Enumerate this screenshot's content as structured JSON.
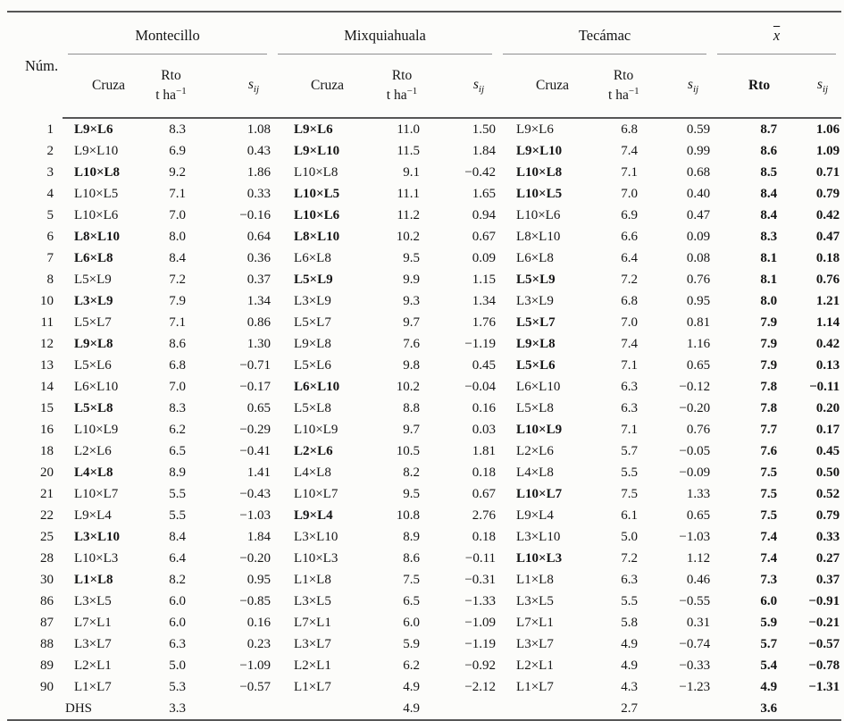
{
  "table": {
    "num_header": "Núm.",
    "groups": [
      "Montecillo",
      "Mixquiahuala",
      "Tecámac"
    ],
    "mean_label": "x",
    "sub": {
      "cruza": "Cruza",
      "rto": "Rto",
      "unit_base": "t ha",
      "unit_exp": "−1",
      "sij_base": "s",
      "sij_sub": "ij",
      "avg_rto": "Rto"
    },
    "rows": [
      {
        "num": "1",
        "mont_cruza": "L9×L6",
        "mont_bold": true,
        "mont_rto": "8.3",
        "mont_sij": "1.08",
        "mix_cruza": "L9×L6",
        "mix_bold": true,
        "mix_rto": "11.0",
        "mix_sij": "1.50",
        "tec_cruza": "L9×L6",
        "tec_bold": false,
        "tec_rto": "6.8",
        "tec_sij": "0.59",
        "avg_rto": "8.7",
        "avg_sij": "1.06"
      },
      {
        "num": "2",
        "mont_cruza": "L9×L10",
        "mont_bold": false,
        "mont_rto": "6.9",
        "mont_sij": "0.43",
        "mix_cruza": "L9×L10",
        "mix_bold": true,
        "mix_rto": "11.5",
        "mix_sij": "1.84",
        "tec_cruza": "L9×L10",
        "tec_bold": true,
        "tec_rto": "7.4",
        "tec_sij": "0.99",
        "avg_rto": "8.6",
        "avg_sij": "1.09"
      },
      {
        "num": "3",
        "mont_cruza": "L10×L8",
        "mont_bold": true,
        "mont_rto": "9.2",
        "mont_sij": "1.86",
        "mix_cruza": "L10×L8",
        "mix_bold": false,
        "mix_rto": "9.1",
        "mix_sij": "−0.42",
        "tec_cruza": "L10×L8",
        "tec_bold": true,
        "tec_rto": "7.1",
        "tec_sij": "0.68",
        "avg_rto": "8.5",
        "avg_sij": "0.71"
      },
      {
        "num": "4",
        "mont_cruza": "L10×L5",
        "mont_bold": false,
        "mont_rto": "7.1",
        "mont_sij": "0.33",
        "mix_cruza": "L10×L5",
        "mix_bold": true,
        "mix_rto": "11.1",
        "mix_sij": "1.65",
        "tec_cruza": "L10×L5",
        "tec_bold": true,
        "tec_rto": "7.0",
        "tec_sij": "0.40",
        "avg_rto": "8.4",
        "avg_sij": "0.79"
      },
      {
        "num": "5",
        "mont_cruza": "L10×L6",
        "mont_bold": false,
        "mont_rto": "7.0",
        "mont_sij": "−0.16",
        "mix_cruza": "L10×L6",
        "mix_bold": true,
        "mix_rto": "11.2",
        "mix_sij": "0.94",
        "tec_cruza": "L10×L6",
        "tec_bold": false,
        "tec_rto": "6.9",
        "tec_sij": "0.47",
        "avg_rto": "8.4",
        "avg_sij": "0.42"
      },
      {
        "num": "6",
        "mont_cruza": "L8×L10",
        "mont_bold": true,
        "mont_rto": "8.0",
        "mont_sij": "0.64",
        "mix_cruza": "L8×L10",
        "mix_bold": true,
        "mix_rto": "10.2",
        "mix_sij": "0.67",
        "tec_cruza": "L8×L10",
        "tec_bold": false,
        "tec_rto": "6.6",
        "tec_sij": "0.09",
        "avg_rto": "8.3",
        "avg_sij": "0.47"
      },
      {
        "num": "7",
        "mont_cruza": "L6×L8",
        "mont_bold": true,
        "mont_rto": "8.4",
        "mont_sij": "0.36",
        "mix_cruza": "L6×L8",
        "mix_bold": false,
        "mix_rto": "9.5",
        "mix_sij": "0.09",
        "tec_cruza": "L6×L8",
        "tec_bold": false,
        "tec_rto": "6.4",
        "tec_sij": "0.08",
        "avg_rto": "8.1",
        "avg_sij": "0.18"
      },
      {
        "num": "8",
        "mont_cruza": "L5×L9",
        "mont_bold": false,
        "mont_rto": "7.2",
        "mont_sij": "0.37",
        "mix_cruza": "L5×L9",
        "mix_bold": true,
        "mix_rto": "9.9",
        "mix_sij": "1.15",
        "tec_cruza": "L5×L9",
        "tec_bold": true,
        "tec_rto": "7.2",
        "tec_sij": "0.76",
        "avg_rto": "8.1",
        "avg_sij": "0.76"
      },
      {
        "num": "10",
        "mont_cruza": "L3×L9",
        "mont_bold": true,
        "mont_rto": "7.9",
        "mont_sij": "1.34",
        "mix_cruza": "L3×L9",
        "mix_bold": false,
        "mix_rto": "9.3",
        "mix_sij": "1.34",
        "tec_cruza": "L3×L9",
        "tec_bold": false,
        "tec_rto": "6.8",
        "tec_sij": "0.95",
        "avg_rto": "8.0",
        "avg_sij": "1.21"
      },
      {
        "num": "11",
        "mont_cruza": "L5×L7",
        "mont_bold": false,
        "mont_rto": "7.1",
        "mont_sij": "0.86",
        "mix_cruza": "L5×L7",
        "mix_bold": false,
        "mix_rto": "9.7",
        "mix_sij": "1.76",
        "tec_cruza": "L5×L7",
        "tec_bold": true,
        "tec_rto": "7.0",
        "tec_sij": "0.81",
        "avg_rto": "7.9",
        "avg_sij": "1.14"
      },
      {
        "num": "12",
        "mont_cruza": "L9×L8",
        "mont_bold": true,
        "mont_rto": "8.6",
        "mont_sij": "1.30",
        "mix_cruza": "L9×L8",
        "mix_bold": false,
        "mix_rto": "7.6",
        "mix_sij": "−1.19",
        "tec_cruza": "L9×L8",
        "tec_bold": true,
        "tec_rto": "7.4",
        "tec_sij": "1.16",
        "avg_rto": "7.9",
        "avg_sij": "0.42"
      },
      {
        "num": "13",
        "mont_cruza": "L5×L6",
        "mont_bold": false,
        "mont_rto": "6.8",
        "mont_sij": "−0.71",
        "mix_cruza": "L5×L6",
        "mix_bold": false,
        "mix_rto": "9.8",
        "mix_sij": "0.45",
        "tec_cruza": "L5×L6",
        "tec_bold": true,
        "tec_rto": "7.1",
        "tec_sij": "0.65",
        "avg_rto": "7.9",
        "avg_sij": "0.13"
      },
      {
        "num": "14",
        "mont_cruza": "L6×L10",
        "mont_bold": false,
        "mont_rto": "7.0",
        "mont_sij": "−0.17",
        "mix_cruza": "L6×L10",
        "mix_bold": true,
        "mix_rto": "10.2",
        "mix_sij": "−0.04",
        "tec_cruza": "L6×L10",
        "tec_bold": false,
        "tec_rto": "6.3",
        "tec_sij": "−0.12",
        "avg_rto": "7.8",
        "avg_sij": "−0.11"
      },
      {
        "num": "15",
        "mont_cruza": "L5×L8",
        "mont_bold": true,
        "mont_rto": "8.3",
        "mont_sij": "0.65",
        "mix_cruza": "L5×L8",
        "mix_bold": false,
        "mix_rto": "8.8",
        "mix_sij": "0.16",
        "tec_cruza": "L5×L8",
        "tec_bold": false,
        "tec_rto": "6.3",
        "tec_sij": "−0.20",
        "avg_rto": "7.8",
        "avg_sij": "0.20"
      },
      {
        "num": "16",
        "mont_cruza": "L10×L9",
        "mont_bold": false,
        "mont_rto": "6.2",
        "mont_sij": "−0.29",
        "mix_cruza": "L10×L9",
        "mix_bold": false,
        "mix_rto": "9.7",
        "mix_sij": "0.03",
        "tec_cruza": "L10×L9",
        "tec_bold": true,
        "tec_rto": "7.1",
        "tec_sij": "0.76",
        "avg_rto": "7.7",
        "avg_sij": "0.17"
      },
      {
        "num": "18",
        "mont_cruza": "L2×L6",
        "mont_bold": false,
        "mont_rto": "6.5",
        "mont_sij": "−0.41",
        "mix_cruza": "L2×L6",
        "mix_bold": true,
        "mix_rto": "10.5",
        "mix_sij": "1.81",
        "tec_cruza": "L2×L6",
        "tec_bold": false,
        "tec_rto": "5.7",
        "tec_sij": "−0.05",
        "avg_rto": "7.6",
        "avg_sij": "0.45"
      },
      {
        "num": "20",
        "mont_cruza": "L4×L8",
        "mont_bold": true,
        "mont_rto": "8.9",
        "mont_sij": "1.41",
        "mix_cruza": "L4×L8",
        "mix_bold": false,
        "mix_rto": "8.2",
        "mix_sij": "0.18",
        "tec_cruza": "L4×L8",
        "tec_bold": false,
        "tec_rto": "5.5",
        "tec_sij": "−0.09",
        "avg_rto": "7.5",
        "avg_sij": "0.50"
      },
      {
        "num": "21",
        "mont_cruza": "L10×L7",
        "mont_bold": false,
        "mont_rto": "5.5",
        "mont_sij": "−0.43",
        "mix_cruza": "L10×L7",
        "mix_bold": false,
        "mix_rto": "9.5",
        "mix_sij": "0.67",
        "tec_cruza": "L10×L7",
        "tec_bold": true,
        "tec_rto": "7.5",
        "tec_sij": "1.33",
        "avg_rto": "7.5",
        "avg_sij": "0.52"
      },
      {
        "num": "22",
        "mont_cruza": "L9×L4",
        "mont_bold": false,
        "mont_rto": "5.5",
        "mont_sij": "−1.03",
        "mix_cruza": "L9×L4",
        "mix_bold": true,
        "mix_rto": "10.8",
        "mix_sij": "2.76",
        "tec_cruza": "L9×L4",
        "tec_bold": false,
        "tec_rto": "6.1",
        "tec_sij": "0.65",
        "avg_rto": "7.5",
        "avg_sij": "0.79"
      },
      {
        "num": "25",
        "mont_cruza": "L3×L10",
        "mont_bold": true,
        "mont_rto": "8.4",
        "mont_sij": "1.84",
        "mix_cruza": "L3×L10",
        "mix_bold": false,
        "mix_rto": "8.9",
        "mix_sij": "0.18",
        "tec_cruza": "L3×L10",
        "tec_bold": false,
        "tec_rto": "5.0",
        "tec_sij": "−1.03",
        "avg_rto": "7.4",
        "avg_sij": "0.33"
      },
      {
        "num": "28",
        "mont_cruza": "L10×L3",
        "mont_bold": false,
        "mont_rto": "6.4",
        "mont_sij": "−0.20",
        "mix_cruza": "L10×L3",
        "mix_bold": false,
        "mix_rto": "8.6",
        "mix_sij": "−0.11",
        "tec_cruza": "L10×L3",
        "tec_bold": true,
        "tec_rto": "7.2",
        "tec_sij": "1.12",
        "avg_rto": "7.4",
        "avg_sij": "0.27"
      },
      {
        "num": "30",
        "mont_cruza": "L1×L8",
        "mont_bold": true,
        "mont_rto": "8.2",
        "mont_sij": "0.95",
        "mix_cruza": "L1×L8",
        "mix_bold": false,
        "mix_rto": "7.5",
        "mix_sij": "−0.31",
        "tec_cruza": "L1×L8",
        "tec_bold": false,
        "tec_rto": "6.3",
        "tec_sij": "0.46",
        "avg_rto": "7.3",
        "avg_sij": "0.37"
      },
      {
        "num": "86",
        "mont_cruza": "L3×L5",
        "mont_bold": false,
        "mont_rto": "6.0",
        "mont_sij": "−0.85",
        "mix_cruza": "L3×L5",
        "mix_bold": false,
        "mix_rto": "6.5",
        "mix_sij": "−1.33",
        "tec_cruza": "L3×L5",
        "tec_bold": false,
        "tec_rto": "5.5",
        "tec_sij": "−0.55",
        "avg_rto": "6.0",
        "avg_sij": "−0.91"
      },
      {
        "num": "87",
        "mont_cruza": "L7×L1",
        "mont_bold": false,
        "mont_rto": "6.0",
        "mont_sij": "0.16",
        "mix_cruza": "L7×L1",
        "mix_bold": false,
        "mix_rto": "6.0",
        "mix_sij": "−1.09",
        "tec_cruza": "L7×L1",
        "tec_bold": false,
        "tec_rto": "5.8",
        "tec_sij": "0.31",
        "avg_rto": "5.9",
        "avg_sij": "−0.21"
      },
      {
        "num": "88",
        "mont_cruza": "L3×L7",
        "mont_bold": false,
        "mont_rto": "6.3",
        "mont_sij": "0.23",
        "mix_cruza": "L3×L7",
        "mix_bold": false,
        "mix_rto": "5.9",
        "mix_sij": "−1.19",
        "tec_cruza": "L3×L7",
        "tec_bold": false,
        "tec_rto": "4.9",
        "tec_sij": "−0.74",
        "avg_rto": "5.7",
        "avg_sij": "−0.57"
      },
      {
        "num": "89",
        "mont_cruza": "L2×L1",
        "mont_bold": false,
        "mont_rto": "5.0",
        "mont_sij": "−1.09",
        "mix_cruza": "L2×L1",
        "mix_bold": false,
        "mix_rto": "6.2",
        "mix_sij": "−0.92",
        "tec_cruza": "L2×L1",
        "tec_bold": false,
        "tec_rto": "4.9",
        "tec_sij": "−0.33",
        "avg_rto": "5.4",
        "avg_sij": "−0.78"
      },
      {
        "num": "90",
        "mont_cruza": "L1×L7",
        "mont_bold": false,
        "mont_rto": "5.3",
        "mont_sij": "−0.57",
        "mix_cruza": "L1×L7",
        "mix_bold": false,
        "mix_rto": "4.9",
        "mix_sij": "−2.12",
        "tec_cruza": "L1×L7",
        "tec_bold": false,
        "tec_rto": "4.3",
        "tec_sij": "−1.23",
        "avg_rto": "4.9",
        "avg_sij": "−1.31"
      },
      {
        "num": "",
        "dhs": true,
        "mont_cruza": "DHS",
        "mont_bold": false,
        "mont_rto": "3.3",
        "mont_sij": "",
        "mix_cruza": "",
        "mix_bold": false,
        "mix_rto": "4.9",
        "mix_sij": "",
        "tec_cruza": "",
        "tec_bold": false,
        "tec_rto": "2.7",
        "tec_sij": "",
        "avg_rto": "3.6",
        "avg_sij": ""
      }
    ]
  }
}
